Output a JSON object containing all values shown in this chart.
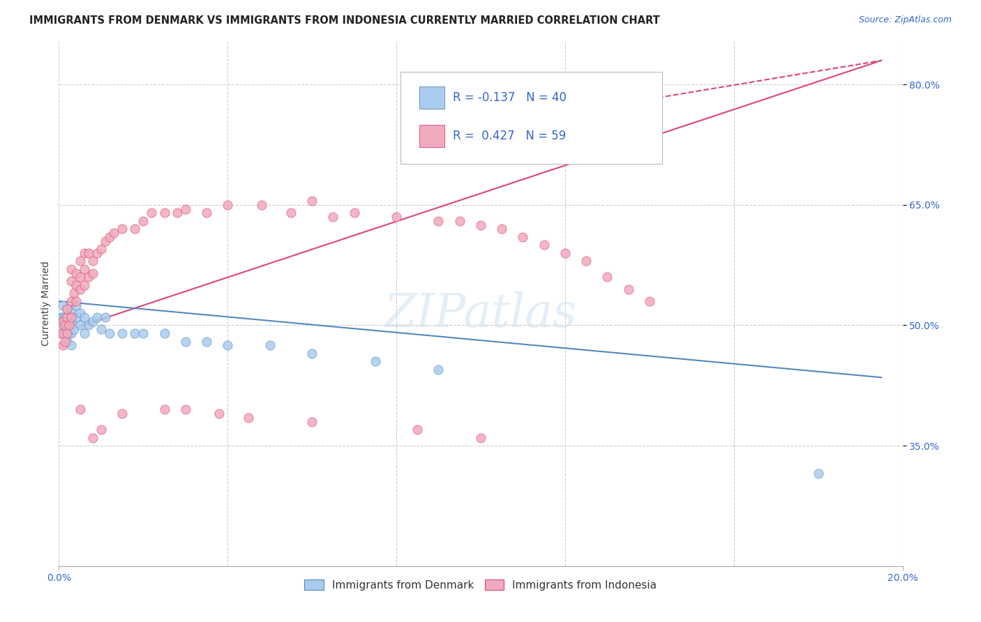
{
  "title": "IMMIGRANTS FROM DENMARK VS IMMIGRANTS FROM INDONESIA CURRENTLY MARRIED CORRELATION CHART",
  "source_text": "Source: ZipAtlas.com",
  "ylabel": "Currently Married",
  "xlim": [
    0.0,
    0.2
  ],
  "ylim": [
    0.2,
    0.855
  ],
  "y_tick_labels": [
    "35.0%",
    "50.0%",
    "65.0%",
    "80.0%"
  ],
  "y_tick_values": [
    0.35,
    0.5,
    0.65,
    0.8
  ],
  "denmark_color": "#aaccee",
  "indonesia_color": "#f0aabb",
  "denmark_line_color": "#5588bb",
  "indonesia_line_color": "#dd4477",
  "legend_box_color_1": "#aaccee",
  "legend_box_color_2": "#f0aabb",
  "watermark": "ZIPatlas",
  "background_color": "#ffffff",
  "grid_color": "#cccccc",
  "denmark_scatter_x": [
    0.0005,
    0.001,
    0.001,
    0.001,
    0.0015,
    0.0015,
    0.002,
    0.002,
    0.002,
    0.0025,
    0.0025,
    0.003,
    0.003,
    0.003,
    0.003,
    0.0035,
    0.004,
    0.004,
    0.005,
    0.005,
    0.006,
    0.006,
    0.007,
    0.008,
    0.009,
    0.01,
    0.011,
    0.012,
    0.015,
    0.018,
    0.02,
    0.025,
    0.03,
    0.035,
    0.04,
    0.05,
    0.06,
    0.075,
    0.09,
    0.18
  ],
  "denmark_scatter_y": [
    0.51,
    0.5,
    0.51,
    0.525,
    0.49,
    0.51,
    0.48,
    0.5,
    0.52,
    0.49,
    0.51,
    0.475,
    0.49,
    0.505,
    0.52,
    0.495,
    0.51,
    0.525,
    0.5,
    0.515,
    0.49,
    0.51,
    0.5,
    0.505,
    0.51,
    0.495,
    0.51,
    0.49,
    0.49,
    0.49,
    0.49,
    0.49,
    0.48,
    0.48,
    0.475,
    0.475,
    0.465,
    0.455,
    0.445,
    0.315
  ],
  "indonesia_scatter_x": [
    0.0005,
    0.001,
    0.001,
    0.001,
    0.0015,
    0.0015,
    0.002,
    0.002,
    0.002,
    0.0025,
    0.003,
    0.003,
    0.003,
    0.003,
    0.0035,
    0.004,
    0.004,
    0.004,
    0.005,
    0.005,
    0.005,
    0.006,
    0.006,
    0.006,
    0.007,
    0.007,
    0.008,
    0.008,
    0.009,
    0.01,
    0.011,
    0.012,
    0.013,
    0.015,
    0.018,
    0.02,
    0.022,
    0.025,
    0.028,
    0.03,
    0.035,
    0.04,
    0.048,
    0.055,
    0.06,
    0.065,
    0.07,
    0.08,
    0.09,
    0.095,
    0.1,
    0.105,
    0.11,
    0.115,
    0.12,
    0.125,
    0.13,
    0.135,
    0.14
  ],
  "indonesia_scatter_y": [
    0.49,
    0.475,
    0.49,
    0.505,
    0.48,
    0.5,
    0.49,
    0.51,
    0.52,
    0.5,
    0.51,
    0.53,
    0.555,
    0.57,
    0.54,
    0.53,
    0.55,
    0.565,
    0.545,
    0.56,
    0.58,
    0.55,
    0.57,
    0.59,
    0.56,
    0.59,
    0.565,
    0.58,
    0.59,
    0.595,
    0.605,
    0.61,
    0.615,
    0.62,
    0.62,
    0.63,
    0.64,
    0.64,
    0.64,
    0.645,
    0.64,
    0.65,
    0.65,
    0.64,
    0.655,
    0.635,
    0.64,
    0.635,
    0.63,
    0.63,
    0.625,
    0.62,
    0.61,
    0.6,
    0.59,
    0.58,
    0.56,
    0.545,
    0.53
  ],
  "indonesia_extra_x": [
    0.005,
    0.008,
    0.01,
    0.015,
    0.025,
    0.03,
    0.038,
    0.045,
    0.06,
    0.085,
    0.1
  ],
  "indonesia_extra_y": [
    0.395,
    0.36,
    0.37,
    0.39,
    0.395,
    0.395,
    0.39,
    0.385,
    0.38,
    0.37,
    0.36
  ],
  "denmark_line_x": [
    0.0,
    0.195
  ],
  "denmark_line_y": [
    0.53,
    0.435
  ],
  "indonesia_line_x": [
    0.0,
    0.195
  ],
  "indonesia_line_y": [
    0.49,
    0.83
  ],
  "indonesia_dashed_line_x": [
    0.115,
    0.195
  ],
  "indonesia_dashed_line_y": [
    0.76,
    0.83
  ]
}
